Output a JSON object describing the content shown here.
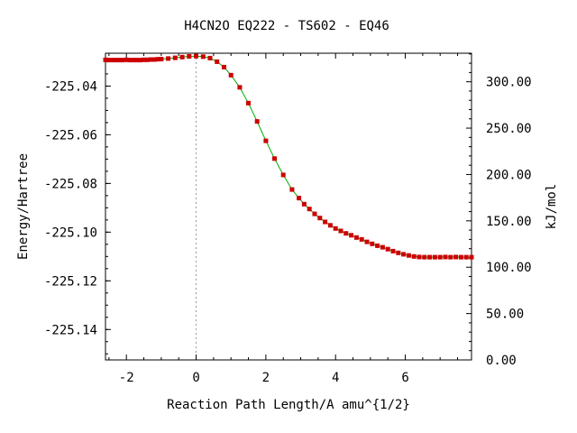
{
  "chart_data": {
    "type": "line",
    "title": "H4CN2O   EQ222 - TS602 - EQ46",
    "xlabel": "Reaction Path Length/A amu^{1/2}",
    "ylabel": "Energy/Hartree",
    "y2label": "kJ/mol",
    "xlim": [
      -2.6,
      7.9
    ],
    "ylim": [
      -225.1525,
      -225.0265
    ],
    "y2lim": [
      0.0,
      330.8
    ],
    "x_ticks": [
      -2,
      0,
      2,
      4,
      6
    ],
    "x_tick_labels": [
      "-2",
      "0",
      "2",
      "4",
      "6"
    ],
    "y_ticks": [
      -225.04,
      -225.06,
      -225.08,
      -225.1,
      -225.12,
      -225.14
    ],
    "y_tick_labels": [
      "-225.04",
      "-225.06",
      "-225.08",
      "-225.10",
      "-225.12",
      "-225.14"
    ],
    "y2_ticks": [
      300,
      250,
      200,
      150,
      100,
      50,
      0
    ],
    "y2_tick_labels": [
      "300.00",
      "250.00",
      "200.00",
      "150.00",
      "100.00",
      "50.00",
      "0.00"
    ],
    "ts_marker_x": 0,
    "grid": false,
    "line_color": "#00aa00",
    "marker_color": "#cc0000",
    "ts_line_color": "#999999",
    "series": [
      {
        "x": [
          -2.6,
          -2.5,
          -2.4,
          -2.3,
          -2.2,
          -2.1,
          -2.0,
          -1.9,
          -1.8,
          -1.7,
          -1.6,
          -1.5,
          -1.4,
          -1.3,
          -1.2,
          -1.1,
          -1.0,
          -0.8,
          -0.6,
          -0.4,
          -0.2,
          0.0,
          0.2,
          0.4,
          0.6,
          0.8,
          1.0,
          1.25,
          1.5,
          1.75,
          2.0,
          2.25,
          2.5,
          2.75,
          2.95,
          3.1,
          3.25,
          3.4,
          3.55,
          3.7,
          3.85,
          4.0,
          4.15,
          4.3,
          4.45,
          4.6,
          4.75,
          4.9,
          5.05,
          5.2,
          5.35,
          5.5,
          5.65,
          5.8,
          5.95,
          6.1,
          6.25,
          6.4,
          6.55,
          6.7,
          6.85,
          7.0,
          7.15,
          7.3,
          7.45,
          7.6,
          7.75,
          7.9
        ],
        "y": [
          -225.0292,
          -225.0293,
          -225.0293,
          -225.0293,
          -225.0293,
          -225.0293,
          -225.0292,
          -225.0293,
          -225.0293,
          -225.0293,
          -225.0293,
          -225.0292,
          -225.0292,
          -225.0291,
          -225.0291,
          -225.029,
          -225.0289,
          -225.0287,
          -225.0284,
          -225.0281,
          -225.0278,
          -225.0277,
          -225.0279,
          -225.0285,
          -225.03,
          -225.0322,
          -225.0355,
          -225.0405,
          -225.047,
          -225.0545,
          -225.0625,
          -225.0698,
          -225.0765,
          -225.0825,
          -225.086,
          -225.0885,
          -225.0905,
          -225.0925,
          -225.0942,
          -225.0958,
          -225.0972,
          -225.0985,
          -225.0995,
          -225.1005,
          -225.1013,
          -225.1022,
          -225.103,
          -225.104,
          -225.1048,
          -225.1056,
          -225.1062,
          -225.107,
          -225.1078,
          -225.1085,
          -225.1091,
          -225.1096,
          -225.11,
          -225.1102,
          -225.1103,
          -225.1103,
          -225.1103,
          -225.1103,
          -225.1102,
          -225.1103,
          -225.1102,
          -225.1103,
          -225.1103,
          -225.1103
        ]
      }
    ]
  }
}
